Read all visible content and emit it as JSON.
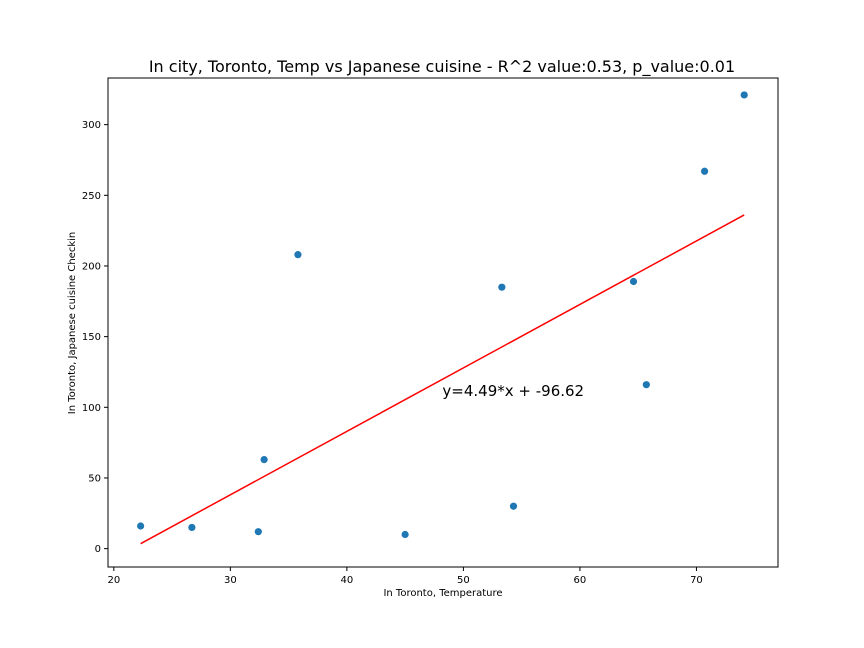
{
  "chart_data": {
    "type": "scatter",
    "title": "In city, Toronto, Temp vs Japanese cuisine - R^2 value:0.53, p_value:0.01",
    "xlabel": "In Toronto,  Temperature",
    "ylabel": "In Toronto,  Japanese cuisine Checkin",
    "xlim": [
      19.5,
      77.0
    ],
    "ylim": [
      -13,
      333
    ],
    "xticks": [
      20,
      30,
      40,
      50,
      60,
      70
    ],
    "yticks": [
      0,
      50,
      100,
      150,
      200,
      250,
      300
    ],
    "point_color": "#1f77b4",
    "line_color": "#ff0000",
    "points": [
      {
        "x": 22.3,
        "y": 16
      },
      {
        "x": 26.7,
        "y": 15
      },
      {
        "x": 32.4,
        "y": 12
      },
      {
        "x": 32.9,
        "y": 63
      },
      {
        "x": 35.8,
        "y": 208
      },
      {
        "x": 45.0,
        "y": 10
      },
      {
        "x": 53.3,
        "y": 185
      },
      {
        "x": 54.3,
        "y": 30
      },
      {
        "x": 64.6,
        "y": 189
      },
      {
        "x": 65.7,
        "y": 116
      },
      {
        "x": 70.7,
        "y": 267
      },
      {
        "x": 74.1,
        "y": 321
      }
    ],
    "regression": {
      "slope": 4.49,
      "intercept": -96.62,
      "x_range": [
        22.3,
        74.1
      ]
    },
    "annotation": {
      "text": "y=4.49*x + -96.62",
      "x": 48.2,
      "y": 108
    }
  }
}
